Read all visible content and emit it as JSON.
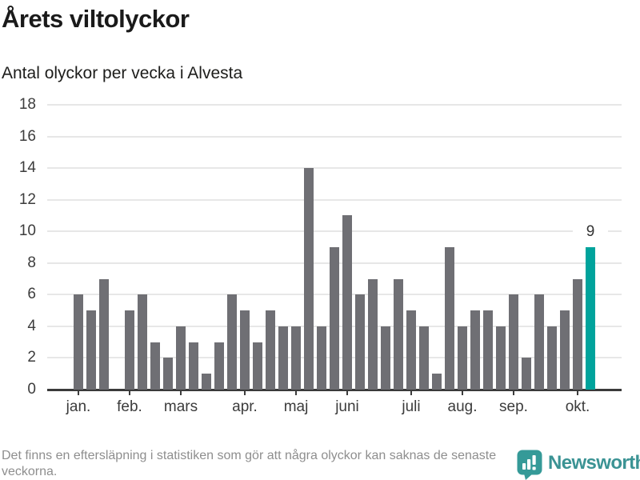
{
  "header": {
    "title": "Årets viltolyckor",
    "subtitle": "Antal olyckor per vecka i Alvesta"
  },
  "chart_data": {
    "type": "bar",
    "title": "Årets viltolyckor",
    "subtitle": "Antal olyckor per vecka i Alvesta",
    "x_unit": "vecka (week of year, 1-41)",
    "values": [
      6,
      5,
      7,
      0,
      5,
      6,
      3,
      2,
      4,
      3,
      1,
      3,
      6,
      5,
      3,
      5,
      4,
      4,
      14,
      4,
      9,
      11,
      6,
      7,
      4,
      7,
      5,
      4,
      1,
      9,
      4,
      5,
      5,
      4,
      6,
      2,
      6,
      4,
      5,
      7,
      9
    ],
    "highlight": {
      "index": 40,
      "value": 9,
      "label": "9",
      "color": "#00a39c"
    },
    "bar_color": "#6f6f74",
    "y_ticks": [
      0,
      2,
      4,
      6,
      8,
      10,
      12,
      14,
      16,
      18
    ],
    "ylim": [
      0,
      18
    ],
    "month_ticks": [
      {
        "label": "jan.",
        "slot": 0
      },
      {
        "label": "feb.",
        "slot": 4
      },
      {
        "label": "mars",
        "slot": 8
      },
      {
        "label": "apr.",
        "slot": 13
      },
      {
        "label": "maj",
        "slot": 17
      },
      {
        "label": "juni",
        "slot": 21
      },
      {
        "label": "juli",
        "slot": 26
      },
      {
        "label": "aug.",
        "slot": 30
      },
      {
        "label": "sep.",
        "slot": 34
      },
      {
        "label": "okt.",
        "slot": 39
      }
    ],
    "grid": "horizontal",
    "legend": "none"
  },
  "footer": {
    "note": "Det finns en eftersläpning i statistiken som gör att några olyckor kan saknas de senaste veckorna.",
    "brand": "Newsworthy"
  },
  "colors": {
    "bar": "#6f6f74",
    "highlight": "#00a39c",
    "gridline": "#e7e7e7",
    "axis": "#3a3a3a",
    "axis_text": "#3c3c3c",
    "title_text": "#1a1a1a",
    "note_text": "#8e8e8e",
    "brand_teal": "#3b9394"
  }
}
